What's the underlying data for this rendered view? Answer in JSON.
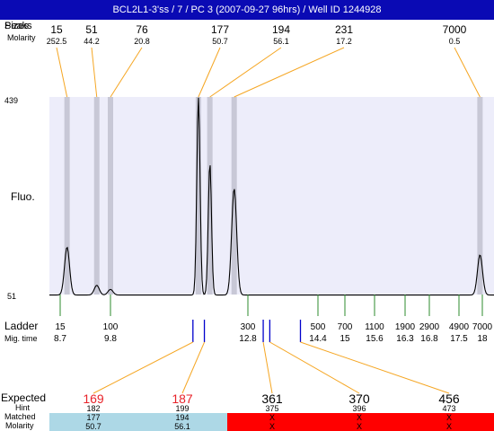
{
  "title": "BCL2L1-3'ss / 7 / PC 3 (2007-09-27 96hrs) / Well ID 1244928",
  "labels": {
    "sizes": "Sizes",
    "peaks": "Peaks",
    "molarity": "Molarity",
    "fluo": "Fluo.",
    "ladder": "Ladder",
    "mig_time": "Mig. time",
    "expected": "Expected",
    "hint": "Hint",
    "matched": "Matched",
    "molarity_row": "Molarity"
  },
  "colors": {
    "title_bg": "#0a0ab4",
    "plot_bg": "#ededfa",
    "peak_band": "#c8c8d6",
    "callout": "#f5a623",
    "ladder_tick": "#2e8b2e",
    "expected_found": "#e8232a",
    "matched_ok": "#add8e6",
    "matched_missing": "#ff0000",
    "blue_marker": "#0000cc"
  },
  "chart_data": {
    "type": "line",
    "y_axis": {
      "min": 51,
      "max": 439,
      "tick_labels": [
        "439",
        "51"
      ]
    },
    "peaks": [
      {
        "size": "15",
        "molarity": "252.5",
        "mig_time": 8.85,
        "height": 145
      },
      {
        "size": "51",
        "molarity": "44.2",
        "mig_time": 9.5,
        "height": 70
      },
      {
        "size": "76",
        "molarity": "20.8",
        "mig_time": 9.8,
        "height": 62
      },
      {
        "size": "177",
        "molarity": "50.7",
        "mig_time": 11.72,
        "height": 439
      },
      {
        "size": "194",
        "molarity": "56.1",
        "mig_time": 11.97,
        "height": 310
      },
      {
        "size": "231",
        "molarity": "17.2",
        "mig_time": 12.5,
        "height": 260
      },
      {
        "size": "7000",
        "molarity": "0.5",
        "mig_time": 17.95,
        "height": 130
      }
    ],
    "ladder": [
      {
        "size": "15",
        "mig_time": "8.7"
      },
      {
        "size": "100",
        "mig_time": "9.8"
      },
      {
        "size": "300",
        "mig_time": "12.8"
      },
      {
        "size": "500",
        "mig_time": "14.4"
      },
      {
        "size": "700",
        "mig_time": "15"
      },
      {
        "size": "1100",
        "mig_time": "15.6"
      },
      {
        "size": "1900",
        "mig_time": "16.3"
      },
      {
        "size": "2900",
        "mig_time": "16.8"
      },
      {
        "size": "4900",
        "mig_time": "17.5"
      },
      {
        "size": "7000",
        "mig_time": "18"
      }
    ],
    "expected": [
      {
        "expected": "169",
        "hint": "182",
        "matched": "177",
        "molarity": "50.7",
        "found": true,
        "mig_time": 11.6
      },
      {
        "expected": "187",
        "hint": "199",
        "matched": "194",
        "molarity": "56.1",
        "found": true,
        "mig_time": 11.85
      },
      {
        "expected": "361",
        "hint": "375",
        "matched": "X",
        "molarity": "X",
        "found": false,
        "mig_time": 13.15
      },
      {
        "expected": "370",
        "hint": "396",
        "matched": "X",
        "molarity": "X",
        "found": false,
        "mig_time": 13.3
      },
      {
        "expected": "456",
        "hint": "473",
        "matched": "X",
        "molarity": "X",
        "found": false,
        "mig_time": 14.0
      }
    ]
  }
}
